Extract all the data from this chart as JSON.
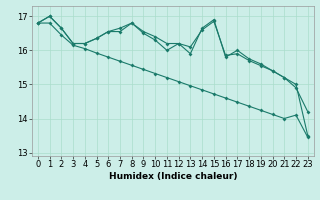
{
  "xlabel": "Humidex (Indice chaleur)",
  "bg_color": "#cceee8",
  "grid_color": "#aaddcc",
  "line_color": "#1a7a6a",
  "xlim": [
    -0.5,
    23.5
  ],
  "ylim": [
    12.9,
    17.3
  ],
  "yticks": [
    13,
    14,
    15,
    16,
    17
  ],
  "xticks": [
    0,
    1,
    2,
    3,
    4,
    5,
    6,
    7,
    8,
    9,
    10,
    11,
    12,
    13,
    14,
    15,
    16,
    17,
    18,
    19,
    20,
    21,
    22,
    23
  ],
  "line1_y": [
    16.8,
    17.0,
    16.65,
    16.2,
    16.2,
    16.35,
    16.55,
    16.65,
    16.8,
    16.55,
    16.4,
    16.2,
    16.2,
    16.1,
    16.6,
    16.85,
    15.85,
    15.9,
    15.7,
    15.55,
    15.4,
    15.2,
    14.9,
    14.2
  ],
  "line2_y": [
    16.8,
    17.0,
    16.65,
    16.2,
    16.2,
    16.35,
    16.55,
    16.55,
    16.8,
    16.5,
    16.3,
    16.0,
    16.2,
    15.9,
    16.65,
    16.9,
    15.8,
    16.0,
    15.75,
    15.6,
    15.4,
    15.2,
    15.0,
    13.5
  ],
  "line3_y": [
    16.8,
    16.8,
    16.45,
    16.15,
    16.05,
    15.92,
    15.8,
    15.68,
    15.56,
    15.44,
    15.32,
    15.2,
    15.08,
    14.96,
    14.84,
    14.72,
    14.6,
    14.48,
    14.36,
    14.24,
    14.12,
    14.0,
    14.1,
    13.45
  ],
  "tick_fontsize": 6.0,
  "xlabel_fontsize": 6.5
}
